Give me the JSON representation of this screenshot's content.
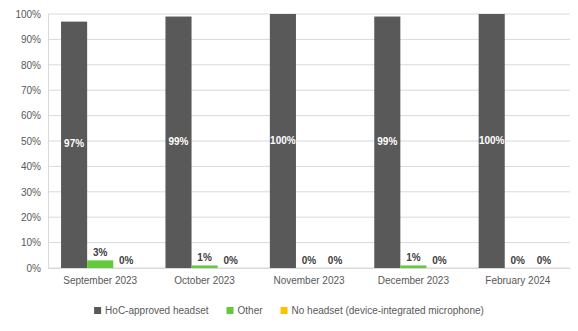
{
  "chart_data": {
    "type": "bar",
    "categories": [
      "September 2023",
      "October 2023",
      "November 2023",
      "December 2023",
      "February 2024"
    ],
    "series": [
      {
        "name": "HoC-approved headset",
        "color": "#595959",
        "values": [
          97,
          99,
          100,
          99,
          100
        ],
        "value_labels": [
          "97%",
          "99%",
          "100%",
          "99%",
          "100%"
        ]
      },
      {
        "name": "Other",
        "color": "#62c93a",
        "values": [
          3,
          1,
          0,
          1,
          0
        ],
        "value_labels": [
          "3%",
          "1%",
          "0%",
          "1%",
          "0%"
        ]
      },
      {
        "name": "No headset (device-integrated microphone)",
        "color": "#ffc000",
        "values": [
          0,
          0,
          0,
          0,
          0
        ],
        "value_labels": [
          "0%",
          "0%",
          "0%",
          "0%",
          "0%"
        ]
      }
    ],
    "ylim": [
      0,
      100
    ],
    "yticks": [
      {
        "value": 0,
        "label": "0%"
      },
      {
        "value": 10,
        "label": "10%"
      },
      {
        "value": 20,
        "label": "20%"
      },
      {
        "value": 30,
        "label": "30%"
      },
      {
        "value": 40,
        "label": "40%"
      },
      {
        "value": 50,
        "label": "50%"
      },
      {
        "value": 60,
        "label": "60%"
      },
      {
        "value": 70,
        "label": "70%"
      },
      {
        "value": 80,
        "label": "80%"
      },
      {
        "value": 90,
        "label": "90%"
      },
      {
        "value": 100,
        "label": "100%"
      }
    ],
    "grid": true,
    "legend": "bottom",
    "data_labels": true
  }
}
